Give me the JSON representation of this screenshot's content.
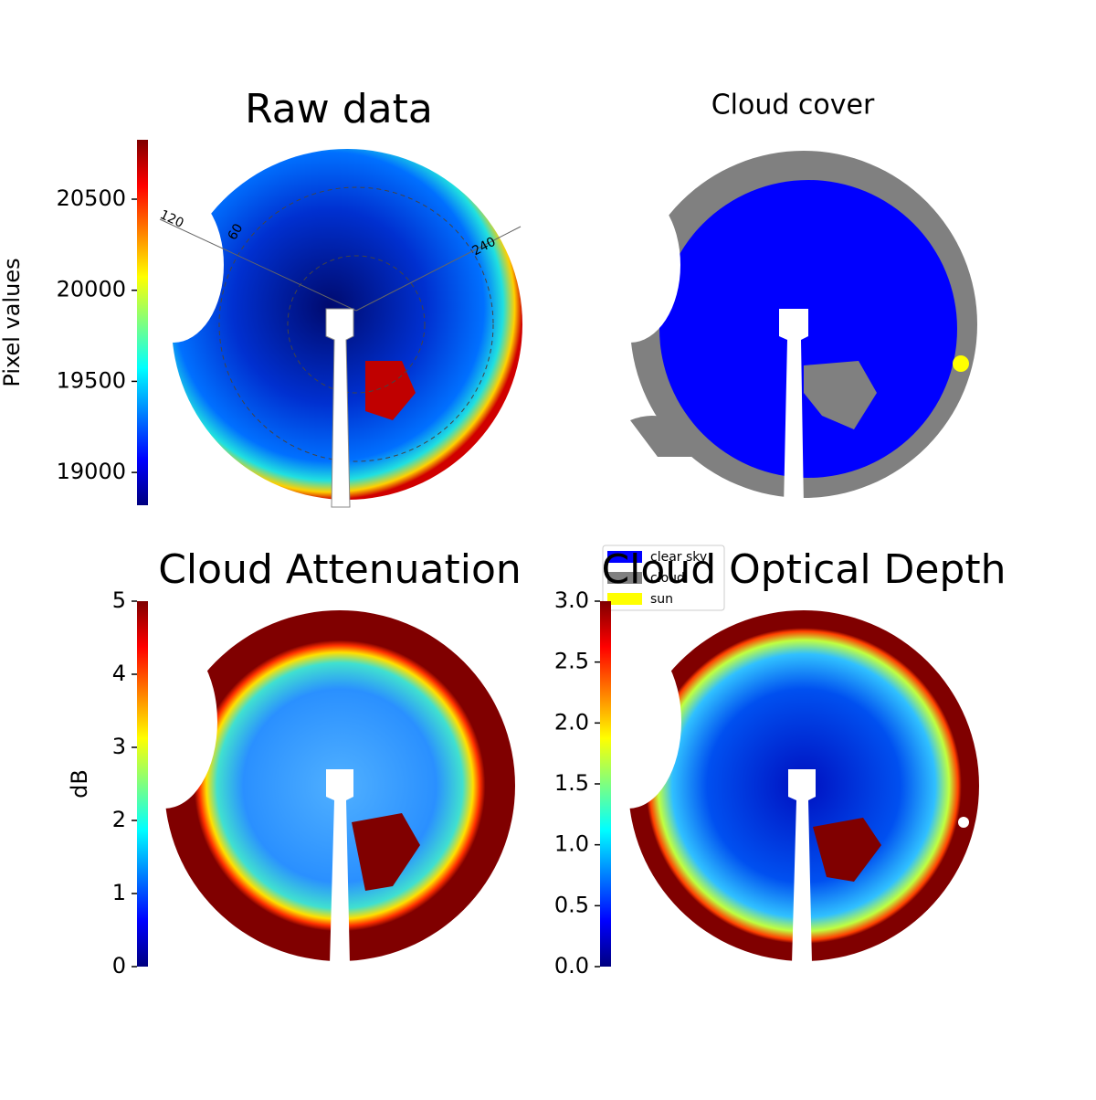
{
  "chart_data": [
    {
      "type": "image",
      "title": "Raw data",
      "ylabel": "Pixel values",
      "colormap": "jet",
      "ylim": [
        18820,
        20826
      ],
      "yticks": [
        19000,
        19500,
        20000,
        20500
      ],
      "annotations": [
        "120",
        "60",
        "240"
      ]
    },
    {
      "type": "image",
      "title": "Cloud cover",
      "legend": [
        {
          "name": "clear sky",
          "color": "#0000ff"
        },
        {
          "name": "cloud",
          "color": "#808080"
        },
        {
          "name": "sun",
          "color": "#ffff00"
        }
      ]
    },
    {
      "type": "image",
      "title": "Cloud Attenuation",
      "ylabel": "dB",
      "colormap": "jet",
      "ylim": [
        0,
        5
      ],
      "yticks": [
        0,
        1,
        2,
        3,
        4,
        5
      ]
    },
    {
      "type": "image",
      "title": "Cloud Optical Depth",
      "colormap": "jet",
      "ylim": [
        0,
        3
      ],
      "yticks": [
        {
          "value": 0,
          "label": "0.0"
        },
        0.5,
        {
          "value": 1,
          "label": "1.0"
        },
        1.5,
        {
          "value": 2,
          "label": "2.0"
        },
        2.5,
        {
          "value": 3,
          "label": "3.0"
        }
      ]
    }
  ]
}
